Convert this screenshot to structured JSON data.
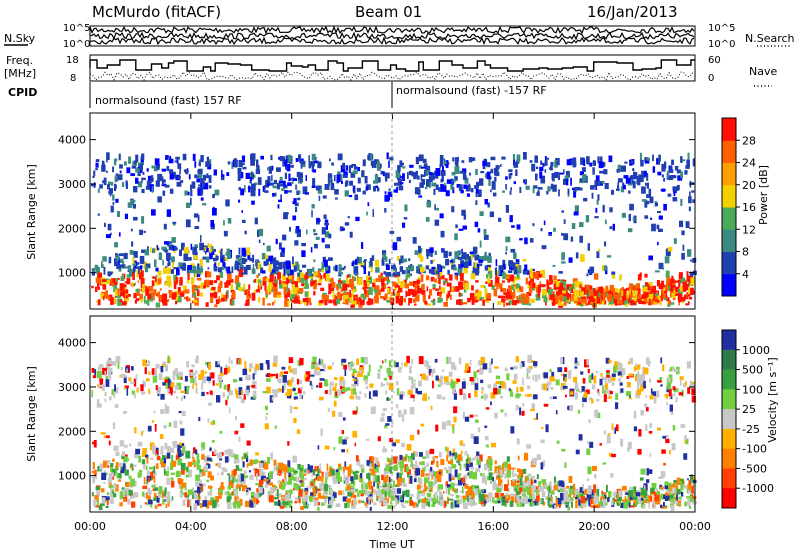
{
  "header": {
    "station": "McMurdo (fitACF)",
    "beam": "Beam 01",
    "date": "16/Jan/2013"
  },
  "chart_data": [
    {
      "type": "line",
      "panel": "noise",
      "left_label": "N.Sky",
      "right_label": "N.Search",
      "left_ticks": [
        "10^5",
        "10^0"
      ],
      "right_ticks": [
        "10^5",
        "10^0"
      ],
      "scale": "log"
    },
    {
      "type": "line",
      "panel": "frequency",
      "left_label_1": "Freq.",
      "left_label_2": "[MHz]",
      "right_label": "Nave",
      "left_ticks": [
        18,
        8
      ],
      "right_ticks": [
        60,
        0
      ]
    },
    {
      "type": "table",
      "panel": "cpid",
      "label": "CPID",
      "segments": [
        {
          "start": "00:00",
          "end": "12:00",
          "text": "normalsound (fast) 157 RF"
        },
        {
          "start": "12:00",
          "end": "24:00",
          "text": "normalsound (fast) -157 RF"
        }
      ]
    },
    {
      "type": "heatmap",
      "panel": "power",
      "ylabel": "Slant Range [km]",
      "ylim": [
        180,
        4600
      ],
      "y_ticks": [
        1000,
        2000,
        3000,
        4000
      ],
      "colorbar": {
        "label": "Power [dB]",
        "ticks": [
          4,
          8,
          12,
          16,
          20,
          24,
          28
        ],
        "range": [
          0,
          32
        ],
        "colors": [
          "#0000ff",
          "#2040b0",
          "#3a8a80",
          "#4caa5a",
          "#f4d000",
          "#ffa000",
          "#ff6000",
          "#ff1000"
        ]
      }
    },
    {
      "type": "heatmap",
      "panel": "velocity",
      "ylabel": "Slant Range [km]",
      "xlabel": "Time UT",
      "ylim": [
        180,
        4600
      ],
      "y_ticks": [
        1000,
        2000,
        3000,
        4000
      ],
      "x_ticks": [
        "00:00",
        "04:00",
        "08:00",
        "12:00",
        "16:00",
        "20:00",
        "00:00"
      ],
      "colorbar": {
        "label": "Velocity [m s⁻¹]",
        "ticks": [
          1000,
          500,
          100,
          25,
          -25,
          -100,
          -500,
          -1000
        ],
        "colors": [
          "#2030a0",
          "#2e7a4a",
          "#38a040",
          "#70d040",
          "#c8c8c8",
          "#ffb000",
          "#ff8000",
          "#ff4000",
          "#ff0000"
        ]
      }
    }
  ]
}
